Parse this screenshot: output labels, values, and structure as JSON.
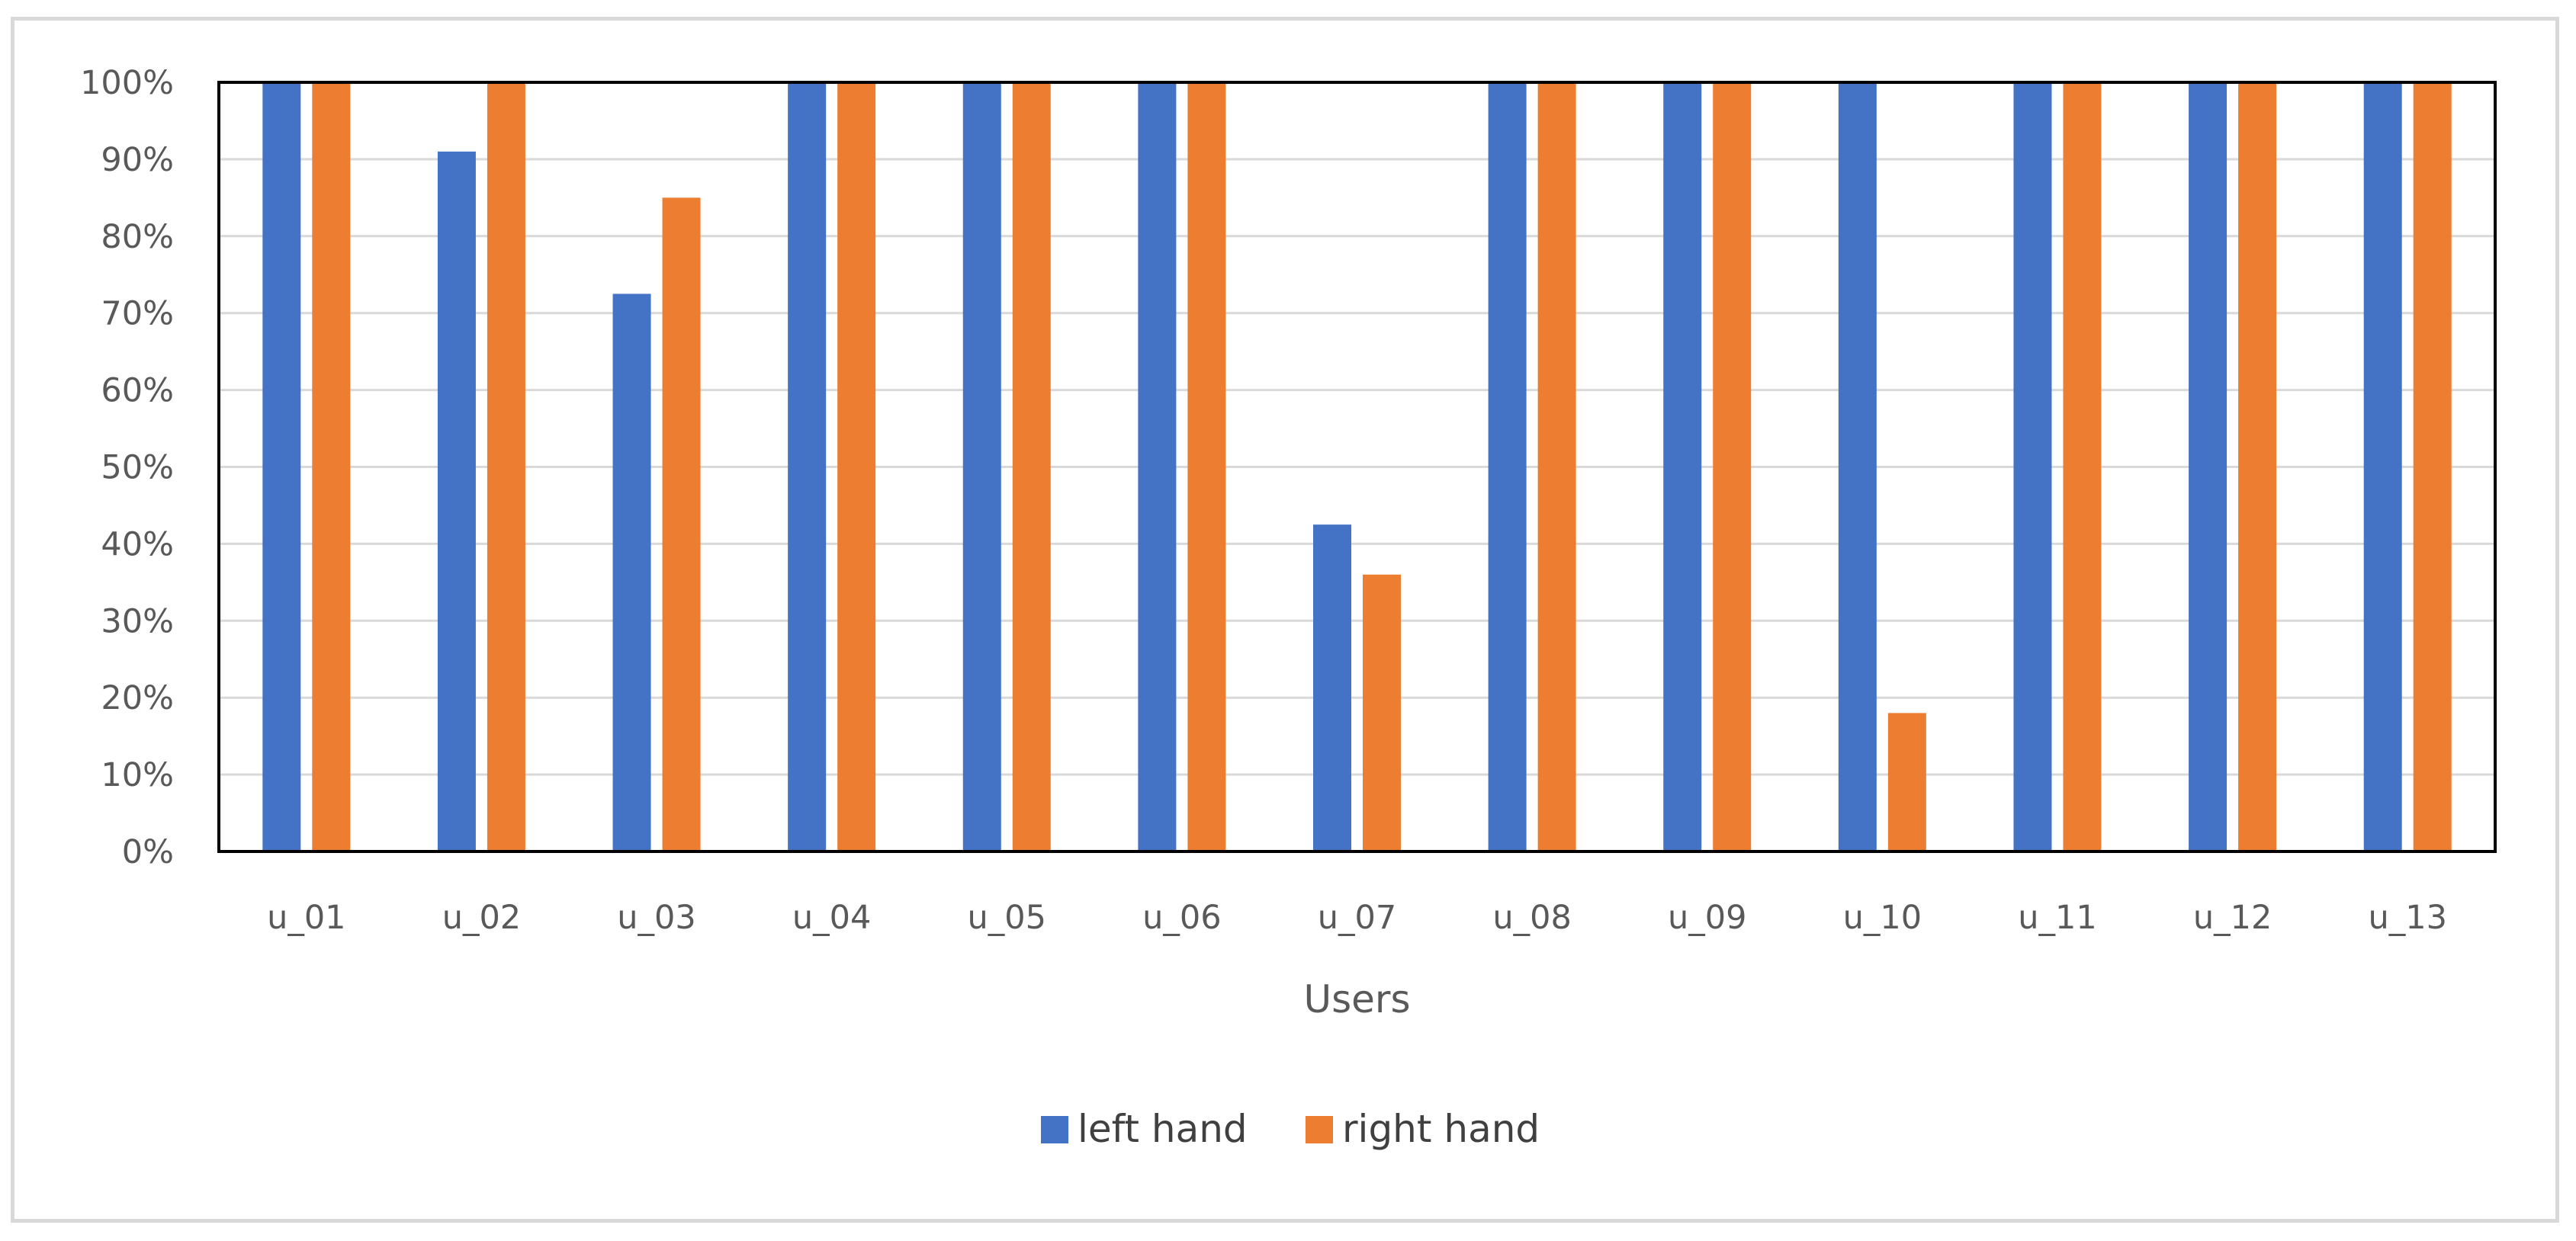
{
  "chart_data": {
    "type": "bar",
    "categories": [
      "u_01",
      "u_02",
      "u_03",
      "u_04",
      "u_05",
      "u_06",
      "u_07",
      "u_08",
      "u_09",
      "u_10",
      "u_11",
      "u_12",
      "u_13"
    ],
    "series": [
      {
        "name": "left hand",
        "color": "#4472c4",
        "values": [
          100,
          91,
          72.5,
          100,
          100,
          100,
          42.5,
          100,
          100,
          100,
          100,
          100,
          100
        ]
      },
      {
        "name": "right hand",
        "color": "#ed7d31",
        "values": [
          100,
          100,
          85,
          100,
          100,
          100,
          36,
          100,
          100,
          18,
          100,
          100,
          100
        ]
      }
    ],
    "title": "",
    "xlabel": "Users",
    "ylabel": "",
    "ylim": [
      0,
      100
    ],
    "yticks": [
      "0%",
      "10%",
      "20%",
      "30%",
      "40%",
      "50%",
      "60%",
      "70%",
      "80%",
      "90%",
      "100%"
    ],
    "grid": true,
    "legend_position": "bottom-center"
  }
}
